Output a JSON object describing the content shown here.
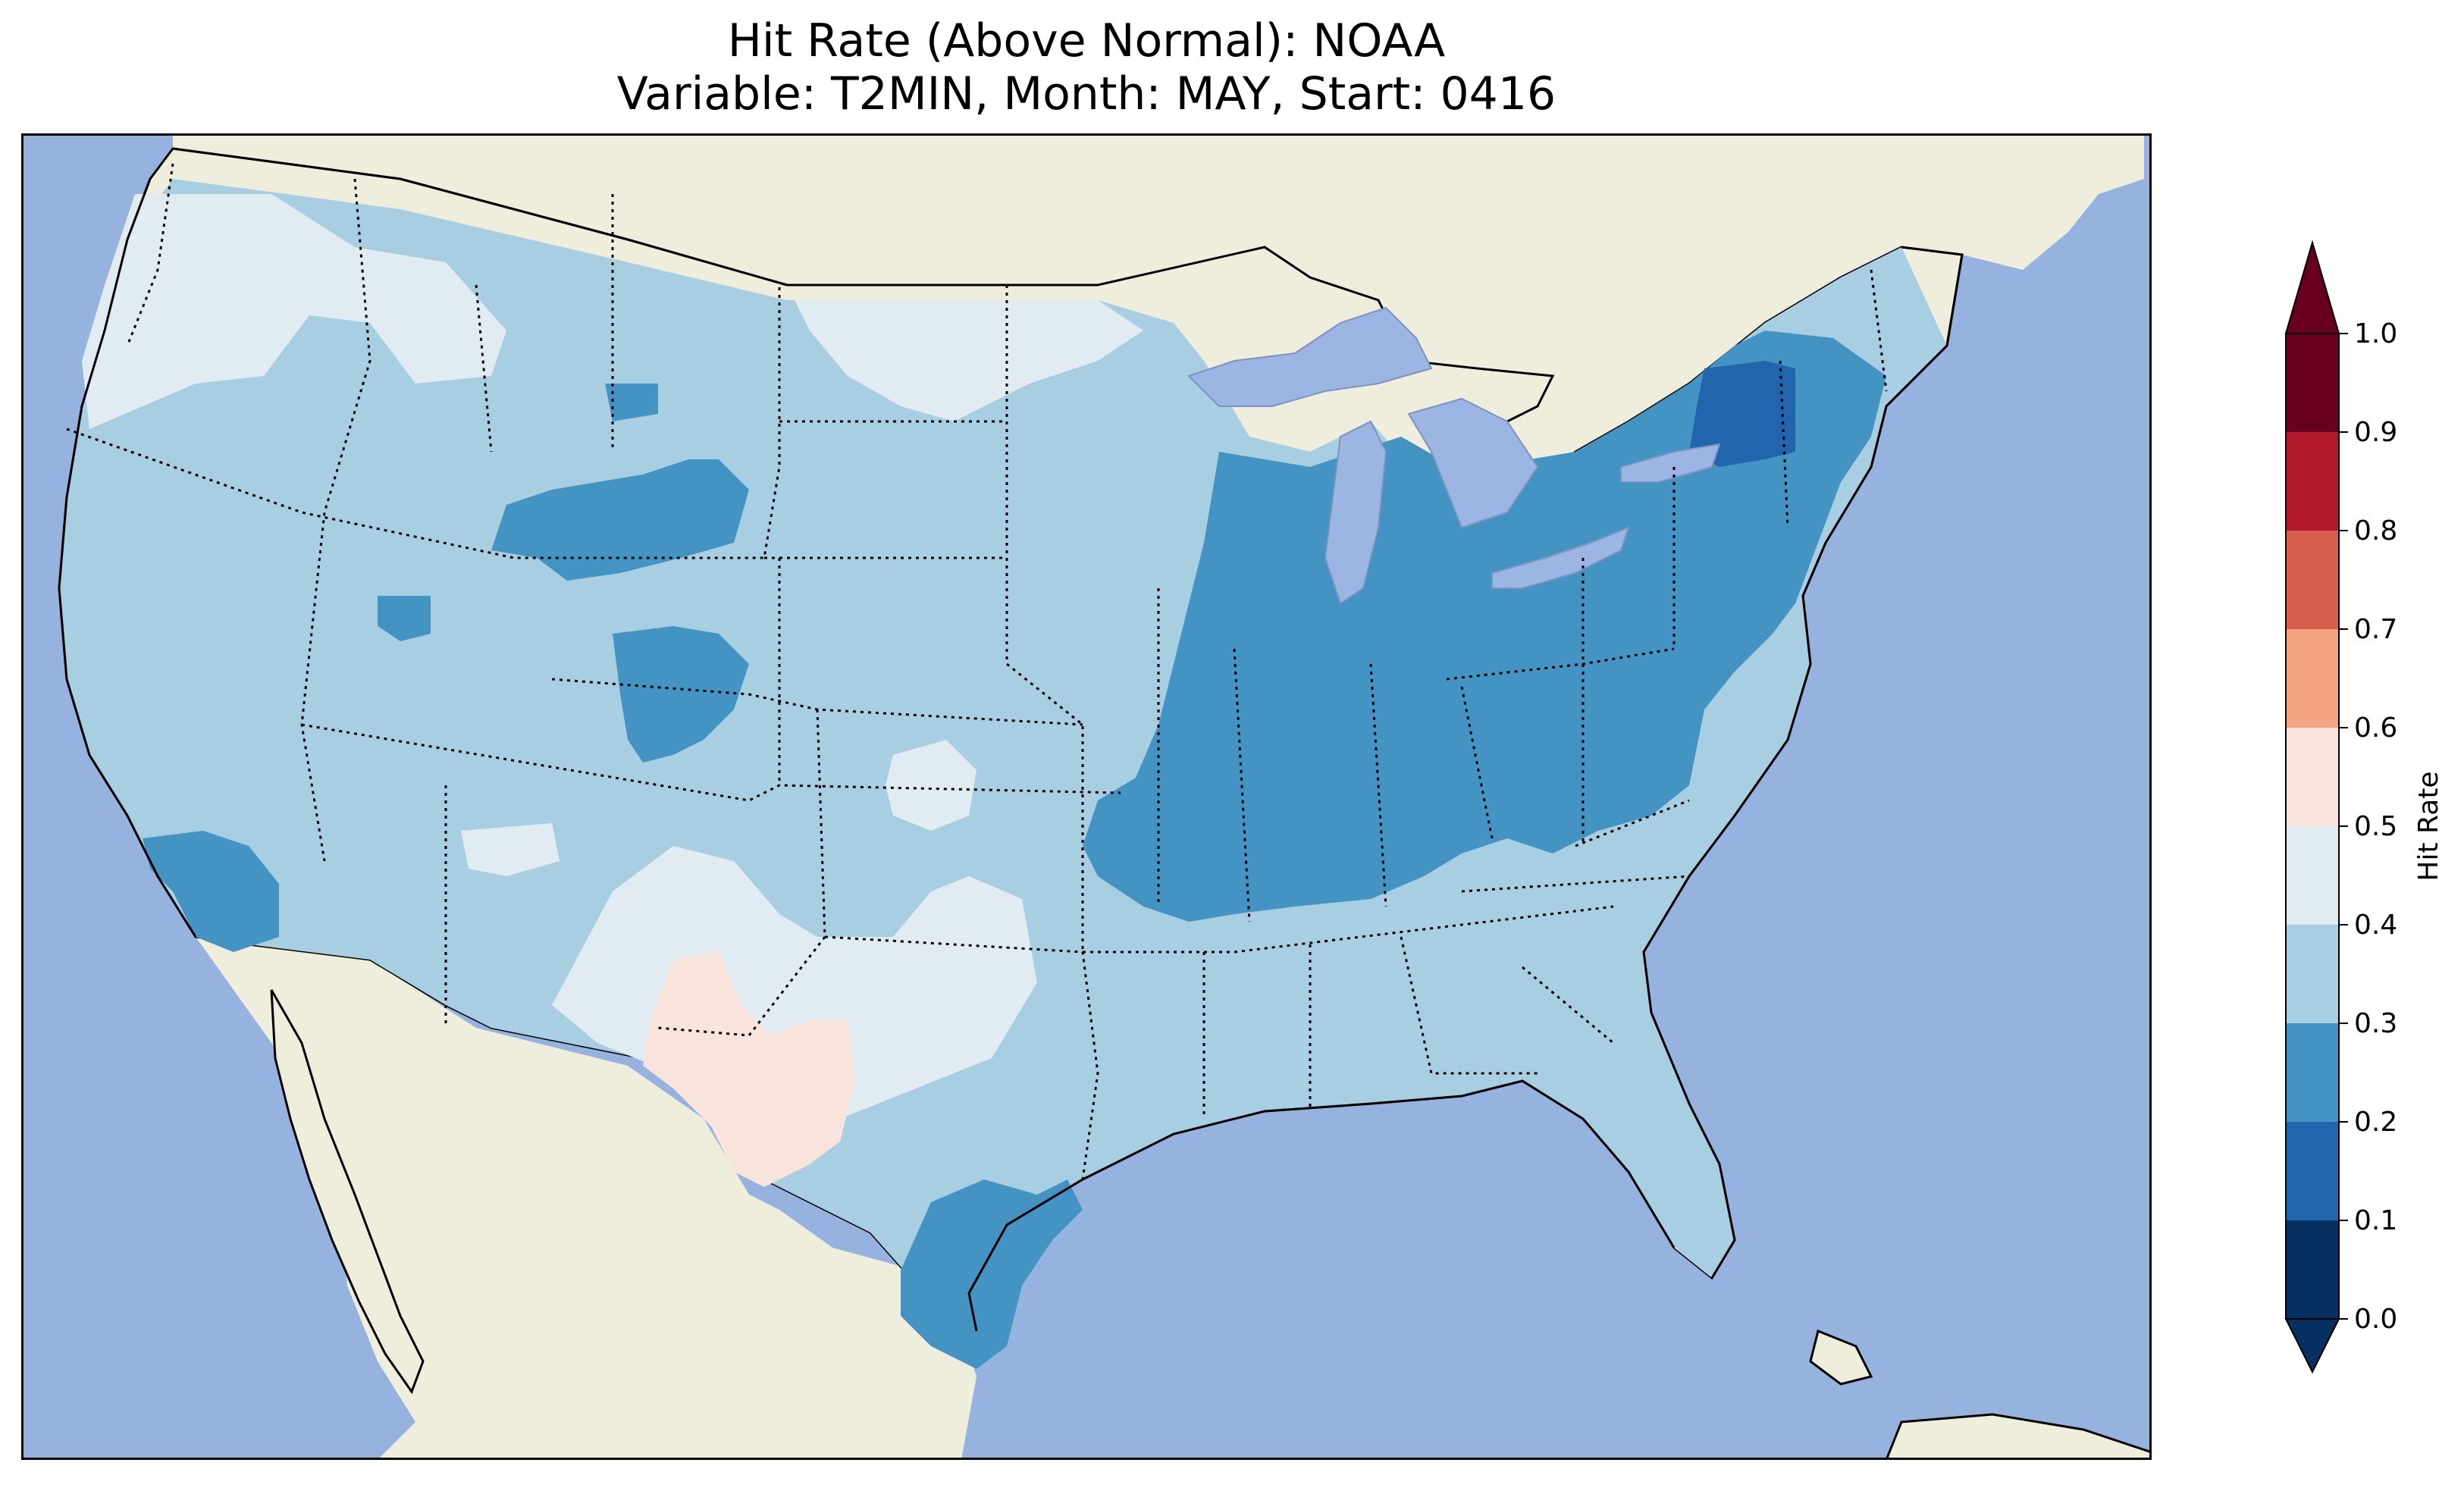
{
  "title": {
    "line1": "Hit Rate (Above Normal): NOAA",
    "line2": "Variable: T2MIN, Month: MAY, Start: 0416"
  },
  "map": {
    "region": "Contiguous United States",
    "projection": "PlateCarree",
    "extent": {
      "lon": [
        -125,
        -67
      ],
      "lat": [
        24,
        50
      ]
    },
    "colors": {
      "ocean": "#96B2DF",
      "land": "#EFEDDC",
      "lakes": "#9CB5E3",
      "coastline": "#000000",
      "state_borders": "#000000"
    },
    "overlay": "gridded hit rate field over CONUS, shaded by colorbar bins"
  },
  "colorbar": {
    "label": "Hit Rate",
    "ticks": [
      "0.0",
      "0.1",
      "0.2",
      "0.3",
      "0.4",
      "0.5",
      "0.6",
      "0.7",
      "0.8",
      "0.9",
      "1.0"
    ],
    "bins": [
      {
        "range": [
          0.0,
          0.1
        ],
        "color": "#053061"
      },
      {
        "range": [
          0.1,
          0.2
        ],
        "color": "#2166AC"
      },
      {
        "range": [
          0.2,
          0.3
        ],
        "color": "#4393C3"
      },
      {
        "range": [
          0.3,
          0.4
        ],
        "color": "#A8CEE2"
      },
      {
        "range": [
          0.4,
          0.5
        ],
        "color": "#E1EBF2"
      },
      {
        "range": [
          0.5,
          0.6
        ],
        "color": "#F9E4DB"
      },
      {
        "range": [
          0.6,
          0.7
        ],
        "color": "#F4A582"
      },
      {
        "range": [
          0.7,
          0.8
        ],
        "color": "#D6604D"
      },
      {
        "range": [
          0.8,
          0.9
        ],
        "color": "#B2182B"
      },
      {
        "range": [
          0.9,
          1.0
        ],
        "color": "#67001F"
      }
    ],
    "extend": "both"
  }
}
